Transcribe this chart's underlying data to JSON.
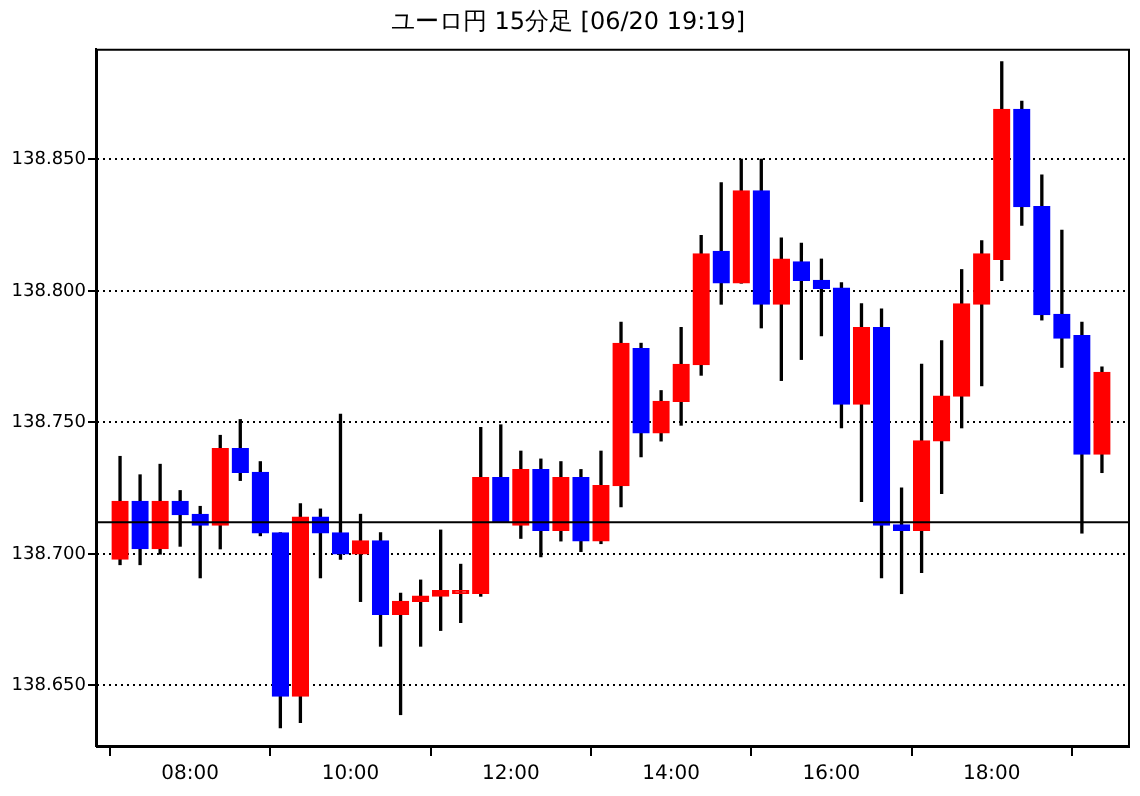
{
  "chart_data": {
    "type": "candlestick",
    "title": "ユーロ円 15分足 [06/20 19:19]",
    "x": [
      7.125,
      7.375,
      7.625,
      7.875,
      8.125,
      8.375,
      8.625,
      8.875,
      9.125,
      9.375,
      9.625,
      9.875,
      10.125,
      10.375,
      10.625,
      10.875,
      11.125,
      11.375,
      11.625,
      11.875,
      12.125,
      12.375,
      12.625,
      12.875,
      13.125,
      13.375,
      13.625,
      13.875,
      14.125,
      14.375,
      14.625,
      14.875,
      15.125,
      15.375,
      15.625,
      15.875,
      16.125,
      16.375,
      16.625,
      16.875,
      17.125,
      17.375,
      17.625,
      17.875,
      18.125,
      18.375,
      18.625,
      18.875,
      19.125,
      19.375
    ],
    "ohlc": [
      [
        138.698,
        138.737,
        138.696,
        138.72
      ],
      [
        138.72,
        138.73,
        138.696,
        138.702
      ],
      [
        138.702,
        138.734,
        138.7,
        138.72
      ],
      [
        138.72,
        138.724,
        138.703,
        138.715
      ],
      [
        138.715,
        138.718,
        138.691,
        138.711
      ],
      [
        138.711,
        138.745,
        138.702,
        138.74
      ],
      [
        138.74,
        138.751,
        138.728,
        138.731
      ],
      [
        138.731,
        138.735,
        138.707,
        138.708
      ],
      [
        138.708,
        138.708,
        138.634,
        138.646
      ],
      [
        138.646,
        138.719,
        138.636,
        138.714
      ],
      [
        138.714,
        138.717,
        138.691,
        138.708
      ],
      [
        138.708,
        138.753,
        138.698,
        138.7
      ],
      [
        138.7,
        138.715,
        138.682,
        138.705
      ],
      [
        138.705,
        138.708,
        138.665,
        138.677
      ],
      [
        138.677,
        138.685,
        138.639,
        138.682
      ],
      [
        138.682,
        138.69,
        138.665,
        138.684
      ],
      [
        138.684,
        138.709,
        138.671,
        138.686
      ],
      [
        138.685,
        138.696,
        138.674,
        138.686
      ],
      [
        138.685,
        138.748,
        138.684,
        138.729
      ],
      [
        138.729,
        138.749,
        138.712,
        138.712
      ],
      [
        138.711,
        138.739,
        138.706,
        138.732
      ],
      [
        138.732,
        138.736,
        138.699,
        138.709
      ],
      [
        138.709,
        138.735,
        138.705,
        138.729
      ],
      [
        138.729,
        138.732,
        138.701,
        138.705
      ],
      [
        138.705,
        138.739,
        138.704,
        138.726
      ],
      [
        138.726,
        138.788,
        138.718,
        138.78
      ],
      [
        138.778,
        138.78,
        138.737,
        138.746
      ],
      [
        138.746,
        138.762,
        138.743,
        138.758
      ],
      [
        138.758,
        138.786,
        138.749,
        138.772
      ],
      [
        138.772,
        138.821,
        138.768,
        138.814
      ],
      [
        138.815,
        138.841,
        138.795,
        138.803
      ],
      [
        138.803,
        138.85,
        138.803,
        138.838
      ],
      [
        138.838,
        138.85,
        138.786,
        138.795
      ],
      [
        138.795,
        138.82,
        138.766,
        138.812
      ],
      [
        138.811,
        138.818,
        138.774,
        138.804
      ],
      [
        138.804,
        138.812,
        138.783,
        138.801
      ],
      [
        138.801,
        138.803,
        138.748,
        138.757
      ],
      [
        138.757,
        138.795,
        138.72,
        138.786
      ],
      [
        138.786,
        138.793,
        138.691,
        138.711
      ],
      [
        138.711,
        138.725,
        138.685,
        138.709
      ],
      [
        138.709,
        138.772,
        138.693,
        138.743
      ],
      [
        138.743,
        138.781,
        138.723,
        138.76
      ],
      [
        138.76,
        138.808,
        138.748,
        138.795
      ],
      [
        138.795,
        138.819,
        138.764,
        138.814
      ],
      [
        138.812,
        138.887,
        138.804,
        138.869
      ],
      [
        138.869,
        138.872,
        138.825,
        138.832
      ],
      [
        138.832,
        138.844,
        138.789,
        138.791
      ],
      [
        138.791,
        138.823,
        138.771,
        138.782
      ],
      [
        138.783,
        138.788,
        138.708,
        138.738
      ],
      [
        138.738,
        138.771,
        138.731,
        138.769
      ]
    ],
    "colors": [
      "#ff0000",
      "#0000ff",
      "#ff0000",
      "#0000ff",
      "#0000ff",
      "#ff0000",
      "#0000ff",
      "#0000ff",
      "#0000ff",
      "#ff0000",
      "#0000ff",
      "#0000ff",
      "#ff0000",
      "#0000ff",
      "#ff0000",
      "#ff0000",
      "#ff0000",
      "#ff0000",
      "#ff0000",
      "#0000ff",
      "#ff0000",
      "#0000ff",
      "#ff0000",
      "#0000ff",
      "#ff0000",
      "#ff0000",
      "#0000ff",
      "#ff0000",
      "#ff0000",
      "#ff0000",
      "#0000ff",
      "#ff0000",
      "#0000ff",
      "#ff0000",
      "#0000ff",
      "#0000ff",
      "#0000ff",
      "#ff0000",
      "#0000ff",
      "#0000ff",
      "#ff0000",
      "#ff0000",
      "#ff0000",
      "#ff0000",
      "#ff0000",
      "#0000ff",
      "#0000ff",
      "#0000ff",
      "#0000ff",
      "#ff0000"
    ],
    "xlim": [
      6.825,
      19.7
    ],
    "xticks": [
      {
        "value": 8,
        "label": "08:00"
      },
      {
        "value": 10,
        "label": "10:00"
      },
      {
        "value": 12,
        "label": "12:00"
      },
      {
        "value": 14,
        "label": "14:00"
      },
      {
        "value": 16,
        "label": "16:00"
      },
      {
        "value": 18,
        "label": "18:00"
      }
    ],
    "ylim": [
      138.627,
      138.892
    ],
    "yticks": [
      {
        "value": 138.65,
        "label": "138.650"
      },
      {
        "value": 138.7,
        "label": "138.700"
      },
      {
        "value": 138.75,
        "label": "138.750"
      },
      {
        "value": 138.8,
        "label": "138.800"
      },
      {
        "value": 138.85,
        "label": "138.850"
      }
    ],
    "ref_lines": [
      {
        "axis": "y",
        "value": 138.712,
        "color": "#000000"
      }
    ],
    "grid": "y",
    "legend": false
  }
}
